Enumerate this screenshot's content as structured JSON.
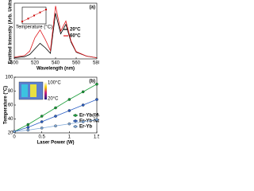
{
  "chart_data": [
    {
      "type": "line",
      "panel_label": "(a)",
      "x_label": "Wavelength (nm)",
      "y_label": "Emitted Intensity (Arb. Units)",
      "x": [
        500,
        510,
        515,
        520,
        525,
        530,
        535,
        540,
        545,
        550,
        555,
        560,
        570,
        580
      ],
      "series": [
        {
          "name": "20°C",
          "color": "#000000",
          "values": [
            0.02,
            0.04,
            0.08,
            0.18,
            0.28,
            0.2,
            0.1,
            0.82,
            0.45,
            0.62,
            0.3,
            0.12,
            0.05,
            0.02
          ]
        },
        {
          "name": "60°C",
          "color": "#e0161b",
          "values": [
            0.03,
            0.06,
            0.14,
            0.38,
            0.52,
            0.35,
            0.15,
            0.95,
            0.5,
            0.68,
            0.32,
            0.13,
            0.05,
            0.02
          ]
        }
      ],
      "xlim": [
        500,
        580
      ],
      "xticks": [
        500,
        520,
        540,
        560,
        580
      ],
      "ylim": [
        0,
        1
      ],
      "legend": "center-right",
      "inset": {
        "type": "line",
        "x_label": "Temperature (°C)",
        "x": [
          20,
          30,
          40,
          50,
          60
        ],
        "values": [
          0.3,
          0.42,
          0.55,
          0.68,
          0.8
        ],
        "xlim": [
          20,
          60
        ],
        "ylim": [
          0.2,
          0.9
        ],
        "color": "#cc0000"
      }
    },
    {
      "type": "line",
      "panel_label": "(b)",
      "x_label": "Laser Power (W)",
      "y_label": "Temperature (°C)",
      "x": [
        0,
        0.25,
        0.5,
        0.75,
        1.0,
        1.25,
        1.5
      ],
      "series": [
        {
          "name": "Er-Yb@Nd",
          "color": "#1a9e3a",
          "values": [
            22,
            32,
            44,
            56,
            68,
            79,
            90
          ]
        },
        {
          "name": "Er-Yb-Nd",
          "color": "#2b5fc4",
          "values": [
            22,
            28,
            36,
            44,
            52,
            60,
            68
          ]
        },
        {
          "name": "Er-Yb",
          "color": "#7fa8d8",
          "values": [
            22,
            24,
            27,
            30,
            33,
            36,
            39
          ]
        }
      ],
      "xlim": [
        0,
        1.5
      ],
      "xticks": [
        0.0,
        0.5,
        1.0,
        1.5
      ],
      "ylim": [
        20,
        100
      ],
      "yticks": [
        20,
        40,
        60,
        80,
        100
      ],
      "legend": "lower-right",
      "colorbar_labels": [
        "100°C",
        "20°C"
      ]
    }
  ]
}
